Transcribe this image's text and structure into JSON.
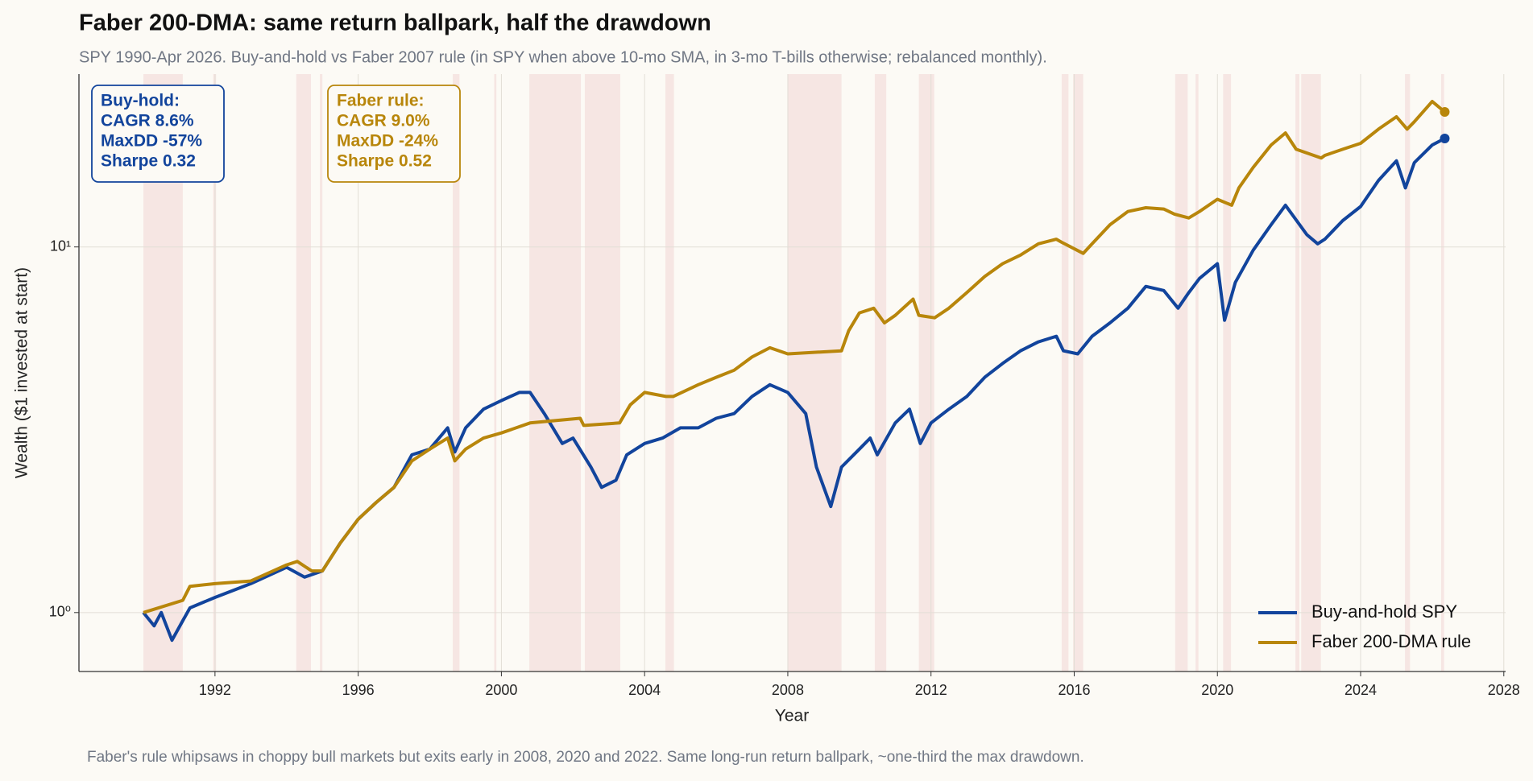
{
  "chart_data": {
    "type": "line",
    "title": "Faber 200-DMA: same return ballpark, half the drawdown",
    "subtitle": "SPY 1990-Apr 2026. Buy-and-hold vs Faber 2007 rule (in SPY when above 10-mo SMA, in 3-mo T-bills otherwise; rebalanced monthly).",
    "x_label": "Year",
    "y_label": "Wealth ($1 invested at start)",
    "note": "Faber's rule whipsaws in choppy bull markets but exits early in 2008, 2020 and 2022. Same long-run return ballpark, ~one-third the max drawdown.",
    "log_scale_y": true,
    "grid": true,
    "legend": "lower right",
    "xlim": [
      1988.2,
      2028.05
    ],
    "xticks": [
      1992,
      1996,
      2000,
      2004,
      2008,
      2012,
      2016,
      2020,
      2024,
      2028
    ],
    "ylim": [
      0.69,
      29.7
    ],
    "yticks": [
      {
        "value": 1,
        "label": "10⁰"
      },
      {
        "value": 10,
        "label": "10¹"
      }
    ],
    "shade_color": "#f6e6e3",
    "shaded_periods": [
      [
        1990.0,
        1991.1
      ],
      [
        1991.95,
        1992.03
      ],
      [
        1994.27,
        1994.68
      ],
      [
        1994.93,
        1995.0
      ],
      [
        1998.64,
        1998.83
      ],
      [
        1999.8,
        1999.86
      ],
      [
        2000.78,
        2002.22
      ],
      [
        2002.33,
        2003.32
      ],
      [
        2004.58,
        2004.82
      ],
      [
        2007.99,
        2009.5
      ],
      [
        2010.43,
        2010.75
      ],
      [
        2011.66,
        2012.09
      ],
      [
        2015.65,
        2015.84
      ],
      [
        2015.97,
        2016.25
      ],
      [
        2018.82,
        2019.17
      ],
      [
        2019.39,
        2019.47
      ],
      [
        2020.16,
        2020.38
      ],
      [
        2022.18,
        2022.29
      ],
      [
        2022.34,
        2022.89
      ],
      [
        2025.24,
        2025.38
      ],
      [
        2026.25,
        2026.33
      ]
    ],
    "series": [
      {
        "name": "Buy-and-hold SPY",
        "color": "#12449c",
        "x": [
          1990.0,
          1990.3,
          1990.5,
          1990.8,
          1991.1,
          1991.3,
          1992.0,
          1993.0,
          1994.0,
          1994.5,
          1995.0,
          1995.5,
          1996.0,
          1996.5,
          1997.0,
          1997.5,
          1998.0,
          1998.5,
          1998.7,
          1999.0,
          1999.5,
          2000.0,
          2000.5,
          2000.8,
          2001.2,
          2001.7,
          2002.0,
          2002.5,
          2002.8,
          2003.2,
          2003.5,
          2004.0,
          2004.5,
          2005.0,
          2005.5,
          2006.0,
          2006.5,
          2007.0,
          2007.5,
          2008.0,
          2008.5,
          2008.8,
          2009.2,
          2009.5,
          2010.0,
          2010.3,
          2010.5,
          2011.0,
          2011.4,
          2011.7,
          2012.0,
          2012.5,
          2013.0,
          2013.5,
          2014.0,
          2014.5,
          2015.0,
          2015.5,
          2015.7,
          2016.1,
          2016.5,
          2017.0,
          2017.5,
          2018.0,
          2018.5,
          2018.9,
          2019.2,
          2019.5,
          2020.0,
          2020.2,
          2020.5,
          2021.0,
          2021.5,
          2021.9,
          2022.5,
          2022.8,
          2023.0,
          2023.5,
          2024.0,
          2024.5,
          2025.0,
          2025.25,
          2025.5,
          2026.0,
          2026.35
        ],
        "values": [
          1.0,
          0.92,
          1.0,
          0.84,
          0.95,
          1.03,
          1.1,
          1.2,
          1.33,
          1.25,
          1.3,
          1.55,
          1.8,
          2.0,
          2.2,
          2.7,
          2.8,
          3.2,
          2.75,
          3.2,
          3.6,
          3.8,
          4.0,
          4.0,
          3.5,
          2.9,
          3.0,
          2.5,
          2.2,
          2.3,
          2.7,
          2.9,
          3.0,
          3.2,
          3.2,
          3.4,
          3.5,
          3.9,
          4.2,
          4.0,
          3.5,
          2.5,
          1.95,
          2.5,
          2.8,
          3.0,
          2.7,
          3.3,
          3.6,
          2.9,
          3.3,
          3.6,
          3.9,
          4.4,
          4.8,
          5.2,
          5.5,
          5.7,
          5.2,
          5.1,
          5.7,
          6.2,
          6.8,
          7.8,
          7.6,
          6.8,
          7.5,
          8.2,
          9.0,
          6.3,
          8.0,
          9.8,
          11.5,
          13.0,
          10.8,
          10.2,
          10.5,
          11.8,
          12.9,
          15.2,
          17.2,
          14.5,
          17.0,
          19.0,
          19.8
        ]
      },
      {
        "name": "Faber 200-DMA rule",
        "color": "#b8860b",
        "x": [
          1990.0,
          1991.1,
          1991.3,
          1992.0,
          1993.0,
          1994.0,
          1994.3,
          1994.7,
          1995.0,
          1995.5,
          1996.0,
          1996.5,
          1997.0,
          1997.5,
          1998.0,
          1998.5,
          1998.7,
          1999.0,
          1999.5,
          2000.0,
          2000.8,
          2002.2,
          2002.3,
          2003.3,
          2003.6,
          2004.0,
          2004.6,
          2004.8,
          2005.5,
          2006.0,
          2006.5,
          2007.0,
          2007.5,
          2008.0,
          2009.5,
          2009.7,
          2010.0,
          2010.4,
          2010.7,
          2011.0,
          2011.5,
          2011.66,
          2012.1,
          2012.5,
          2013.0,
          2013.5,
          2014.0,
          2014.5,
          2015.0,
          2015.5,
          2015.65,
          2016.25,
          2016.5,
          2017.0,
          2017.5,
          2018.0,
          2018.5,
          2018.8,
          2019.2,
          2019.5,
          2020.0,
          2020.4,
          2020.6,
          2021.0,
          2021.5,
          2021.9,
          2022.2,
          2022.9,
          2023.0,
          2023.5,
          2024.0,
          2024.5,
          2025.0,
          2025.3,
          2025.5,
          2026.0,
          2026.35
        ],
        "values": [
          1.0,
          1.08,
          1.18,
          1.2,
          1.22,
          1.35,
          1.38,
          1.3,
          1.3,
          1.55,
          1.8,
          2.0,
          2.2,
          2.6,
          2.8,
          3.0,
          2.6,
          2.8,
          3.0,
          3.1,
          3.3,
          3.4,
          3.25,
          3.3,
          3.7,
          4.0,
          3.9,
          3.9,
          4.2,
          4.4,
          4.6,
          5.0,
          5.3,
          5.1,
          5.2,
          5.9,
          6.6,
          6.8,
          6.2,
          6.5,
          7.2,
          6.5,
          6.4,
          6.8,
          7.5,
          8.3,
          9.0,
          9.5,
          10.2,
          10.5,
          10.3,
          9.6,
          10.2,
          11.5,
          12.5,
          12.8,
          12.7,
          12.3,
          12.0,
          12.5,
          13.5,
          13.0,
          14.5,
          16.5,
          19.0,
          20.5,
          18.5,
          17.5,
          17.8,
          18.5,
          19.2,
          21.0,
          22.7,
          21.0,
          22.0,
          25.0,
          23.4
        ]
      }
    ],
    "annotations": [
      {
        "color": "#12449c",
        "lines": [
          "Buy-hold:",
          "CAGR 8.6%",
          "MaxDD -57%",
          "Sharpe 0.32"
        ]
      },
      {
        "color": "#b8860b",
        "lines": [
          "Faber rule:",
          "CAGR 9.0%",
          "MaxDD -24%",
          "Sharpe 0.52"
        ]
      }
    ]
  }
}
